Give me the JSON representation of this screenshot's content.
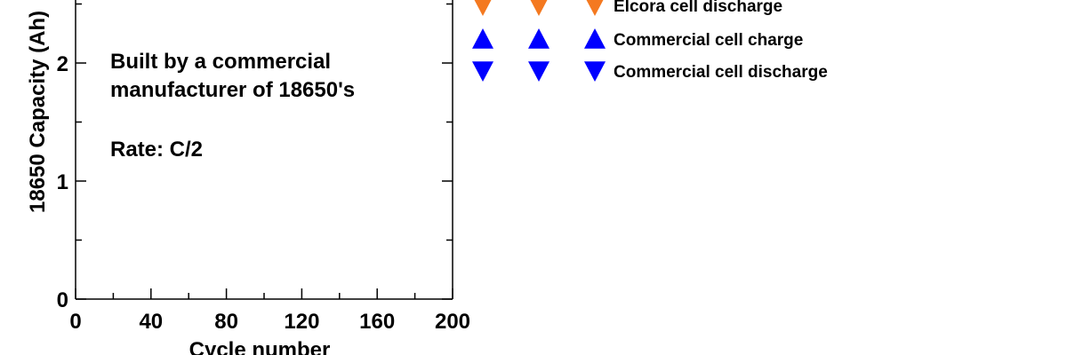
{
  "chart_data": {
    "type": "scatter",
    "xlabel": "Cycle number",
    "ylabel": "18650 Capacity (Ah)",
    "xlim": [
      0,
      200
    ],
    "ylim": [
      0,
      2.5
    ],
    "x_ticks": [
      "0",
      "40",
      "80",
      "120",
      "160",
      "200"
    ],
    "y_ticks": [
      "0",
      "1",
      "2"
    ],
    "grid": false,
    "annotations": [
      "Built by a commercial",
      "manufacturer of 18650's",
      "Rate: C/2"
    ],
    "legend_position": "top-right",
    "series": [
      {
        "name": "Elcora cell discharge",
        "marker": "triangle-down",
        "color": "#f47920",
        "x": [],
        "y": []
      },
      {
        "name": "Commercial cell charge",
        "marker": "triangle-up",
        "color": "#0000ff",
        "x": [],
        "y": []
      },
      {
        "name": "Commercial cell discharge",
        "marker": "triangle-down",
        "color": "#0000ff",
        "x": [],
        "y": []
      }
    ]
  }
}
